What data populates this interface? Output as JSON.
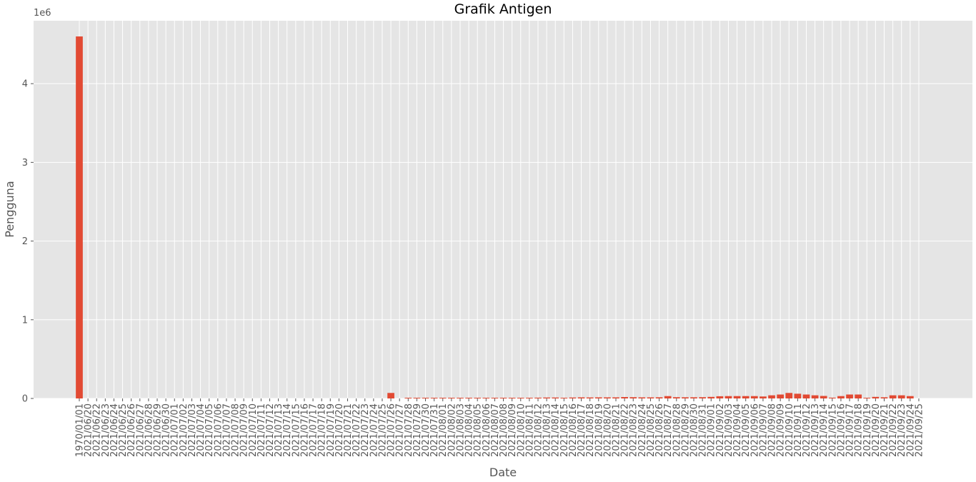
{
  "chart_data": {
    "type": "bar",
    "title": "Grafik Antigen",
    "xlabel": "Date",
    "ylabel": "Pengguna",
    "scale_label": "1e6",
    "ylim": [
      0,
      4.8
    ],
    "yticks": [
      0,
      1,
      2,
      3,
      4
    ],
    "grid": true,
    "bar_color": "#E24A33",
    "background_color": "#E5E5E5",
    "categories": [
      "1970/01/01",
      "2021/06/20",
      "2021/06/22",
      "2021/06/23",
      "2021/06/24",
      "2021/06/25",
      "2021/06/26",
      "2021/06/27",
      "2021/06/28",
      "2021/06/29",
      "2021/06/30",
      "2021/07/01",
      "2021/07/02",
      "2021/07/03",
      "2021/07/04",
      "2021/07/05",
      "2021/07/06",
      "2021/07/07",
      "2021/07/08",
      "2021/07/09",
      "2021/07/10",
      "2021/07/11",
      "2021/07/12",
      "2021/07/13",
      "2021/07/14",
      "2021/07/15",
      "2021/07/16",
      "2021/07/17",
      "2021/07/18",
      "2021/07/19",
      "2021/07/20",
      "2021/07/21",
      "2021/07/22",
      "2021/07/23",
      "2021/07/24",
      "2021/07/25",
      "2021/07/26",
      "2021/07/27",
      "2021/07/28",
      "2021/07/29",
      "2021/07/30",
      "2021/07/31",
      "2021/08/01",
      "2021/08/02",
      "2021/08/03",
      "2021/08/04",
      "2021/08/05",
      "2021/08/06",
      "2021/08/07",
      "2021/08/08",
      "2021/08/09",
      "2021/08/10",
      "2021/08/11",
      "2021/08/12",
      "2021/08/13",
      "2021/08/14",
      "2021/08/15",
      "2021/08/16",
      "2021/08/17",
      "2021/08/18",
      "2021/08/19",
      "2021/08/20",
      "2021/08/21",
      "2021/08/22",
      "2021/08/23",
      "2021/08/24",
      "2021/08/25",
      "2021/08/26",
      "2021/08/27",
      "2021/08/28",
      "2021/08/29",
      "2021/08/30",
      "2021/08/31",
      "2021/09/01",
      "2021/09/02",
      "2021/09/03",
      "2021/09/04",
      "2021/09/05",
      "2021/09/06",
      "2021/09/07",
      "2021/09/08",
      "2021/09/09",
      "2021/09/10",
      "2021/09/11",
      "2021/09/12",
      "2021/09/13",
      "2021/09/14",
      "2021/09/15",
      "2021/09/16",
      "2021/09/17",
      "2021/09/18",
      "2021/09/19",
      "2021/09/20",
      "2021/09/21",
      "2021/09/22",
      "2021/09/23",
      "2021/09/24",
      "2021/09/25"
    ],
    "values": [
      4.6,
      0,
      0,
      0,
      0,
      0,
      0,
      0,
      0,
      0,
      0,
      0,
      0,
      0,
      0,
      0,
      0,
      0,
      0,
      0,
      0,
      0,
      0,
      0,
      0,
      0,
      0,
      0,
      0,
      0,
      0,
      0,
      0,
      0,
      0,
      0,
      0.07,
      0,
      0.005,
      0.006,
      0.006,
      0.007,
      0.008,
      0.008,
      0.007,
      0.009,
      0.008,
      0.008,
      0.008,
      0.009,
      0.008,
      0.008,
      0.009,
      0.01,
      0.012,
      0.012,
      0.008,
      0.012,
      0.014,
      0.013,
      0.014,
      0.014,
      0.014,
      0.018,
      0.016,
      0.014,
      0.014,
      0.015,
      0.03,
      0.016,
      0.015,
      0.015,
      0.016,
      0.02,
      0.028,
      0.03,
      0.03,
      0.03,
      0.03,
      0.025,
      0.04,
      0.05,
      0.07,
      0.06,
      0.05,
      0.04,
      0.032,
      0.01,
      0.03,
      0.05,
      0.05,
      0.008,
      0.02,
      0.015,
      0.04,
      0.04,
      0.03,
      0
    ]
  }
}
